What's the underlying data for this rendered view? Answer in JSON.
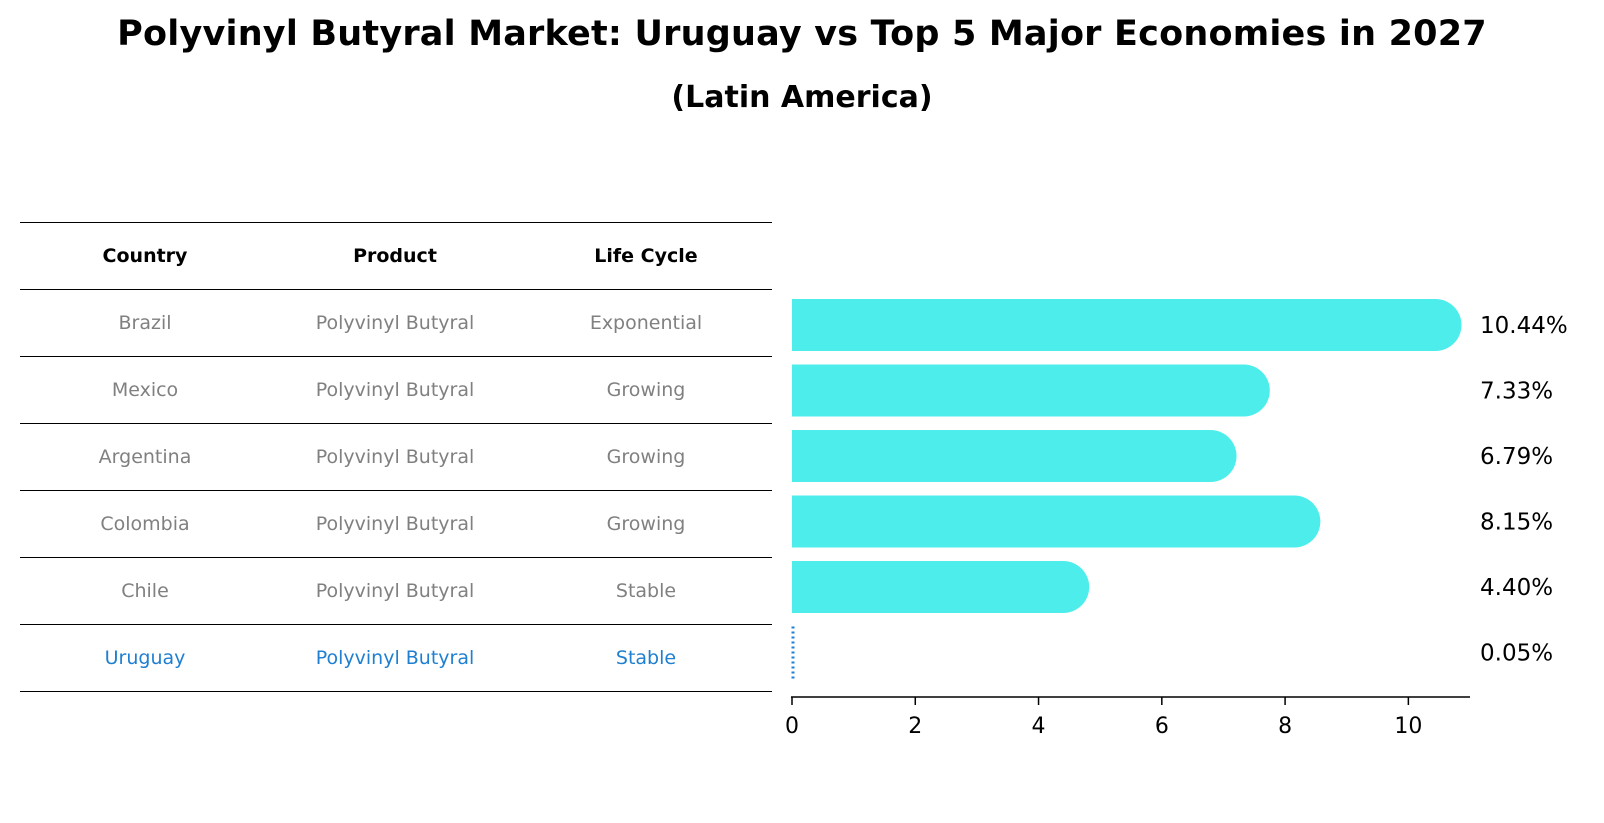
{
  "title": "Polyvinyl Butyral Market: Uruguay vs Top 5 Major Economies in 2027",
  "subtitle": "(Latin America)",
  "table": {
    "headers": [
      "Country",
      "Product",
      "Life Cycle"
    ],
    "rows": [
      [
        "Brazil",
        "Polyvinyl Butyral",
        "Exponential"
      ],
      [
        "Mexico",
        "Polyvinyl Butyral",
        "Growing"
      ],
      [
        "Argentina",
        "Polyvinyl Butyral",
        "Growing"
      ],
      [
        "Colombia",
        "Polyvinyl Butyral",
        "Growing"
      ],
      [
        "Chile",
        "Polyvinyl Butyral",
        "Stable"
      ],
      [
        "Uruguay",
        "Polyvinyl Butyral",
        "Stable"
      ]
    ],
    "highlight_row": "Uruguay"
  },
  "colors": {
    "bar": "#4dedeb",
    "highlight": "#1f7fd0",
    "muted_text": "#808080"
  },
  "chart_data": {
    "type": "bar",
    "orientation": "horizontal",
    "categories": [
      "Brazil",
      "Mexico",
      "Argentina",
      "Colombia",
      "Chile",
      "Uruguay"
    ],
    "values": [
      10.44,
      7.33,
      6.79,
      8.15,
      4.4,
      0.05
    ],
    "value_labels": [
      "10.44%",
      "7.33%",
      "6.79%",
      "8.15%",
      "4.40%",
      "0.05%"
    ],
    "xlim": [
      0,
      11
    ],
    "xticks": [
      0,
      2,
      4,
      6,
      8,
      10
    ],
    "grid": false
  }
}
